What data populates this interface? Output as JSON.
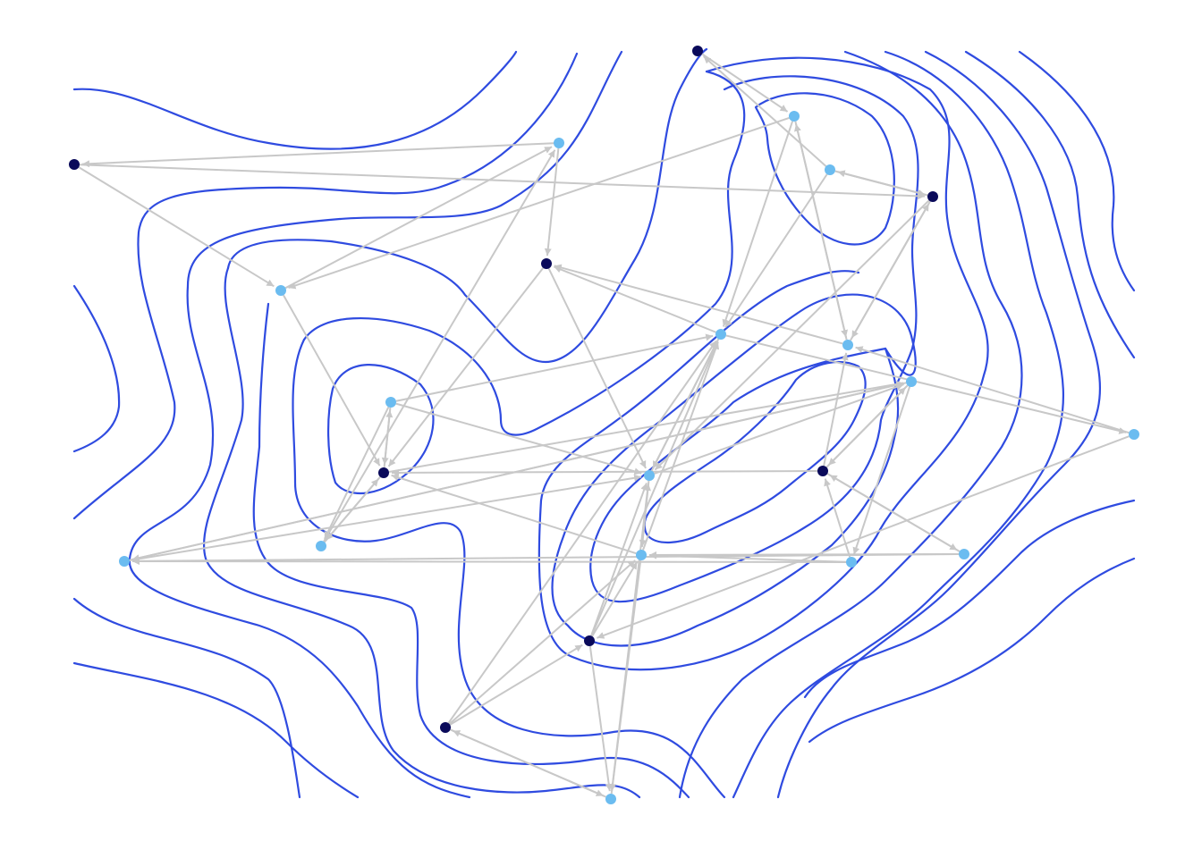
{
  "colors": {
    "contour": "#2f4be0",
    "edge": "#c8c8c8",
    "node_dark": "#0a0a5a",
    "node_light": "#6bbcf0",
    "background": "#ffffff"
  },
  "nodes": [
    {
      "id": "n0",
      "kind": "dark"
    },
    {
      "id": "n1",
      "kind": "dark"
    },
    {
      "id": "n2",
      "kind": "light"
    },
    {
      "id": "n3",
      "kind": "light"
    },
    {
      "id": "n4",
      "kind": "light"
    },
    {
      "id": "n5",
      "kind": "light"
    },
    {
      "id": "n6",
      "kind": "dark"
    },
    {
      "id": "n7",
      "kind": "light"
    },
    {
      "id": "n8",
      "kind": "dark"
    },
    {
      "id": "n9",
      "kind": "light"
    },
    {
      "id": "n10",
      "kind": "light"
    },
    {
      "id": "n11",
      "kind": "light"
    },
    {
      "id": "n12",
      "kind": "dark"
    },
    {
      "id": "n13",
      "kind": "light"
    },
    {
      "id": "n14",
      "kind": "light"
    },
    {
      "id": "n15",
      "kind": "dark"
    },
    {
      "id": "n16",
      "kind": "light"
    },
    {
      "id": "n17",
      "kind": "light"
    },
    {
      "id": "n18",
      "kind": "light"
    },
    {
      "id": "n19",
      "kind": "light"
    },
    {
      "id": "n20",
      "kind": "light"
    },
    {
      "id": "n21",
      "kind": "dark"
    },
    {
      "id": "n22",
      "kind": "dark"
    },
    {
      "id": "n23",
      "kind": "light"
    }
  ],
  "edges": [
    [
      "n1",
      "n4"
    ],
    [
      "n4",
      "n3"
    ],
    [
      "n4",
      "n7"
    ],
    [
      "n4",
      "n10"
    ],
    [
      "n7",
      "n4"
    ],
    [
      "n7",
      "n6"
    ],
    [
      "n7",
      "n8"
    ],
    [
      "n5",
      "n6"
    ],
    [
      "n5",
      "n10"
    ],
    [
      "n5",
      "n1"
    ],
    [
      "n6",
      "n7"
    ],
    [
      "n6",
      "n5"
    ],
    [
      "n3",
      "n2"
    ],
    [
      "n2",
      "n8"
    ],
    [
      "n2",
      "n0"
    ],
    [
      "n0",
      "n6"
    ],
    [
      "n0",
      "n3"
    ],
    [
      "n3",
      "n12"
    ],
    [
      "n12",
      "n14"
    ],
    [
      "n12",
      "n13"
    ],
    [
      "n12",
      "n17"
    ],
    [
      "n14",
      "n2"
    ],
    [
      "n14",
      "n12"
    ],
    [
      "n13",
      "n14"
    ],
    [
      "n13",
      "n18"
    ],
    [
      "n13",
      "n12"
    ],
    [
      "n11",
      "n12"
    ],
    [
      "n11",
      "n10"
    ],
    [
      "n11",
      "n23"
    ],
    [
      "n16",
      "n11"
    ],
    [
      "n16",
      "n20"
    ],
    [
      "n15",
      "n16"
    ],
    [
      "n15",
      "n17"
    ],
    [
      "n15",
      "n7"
    ],
    [
      "n16",
      "n15"
    ],
    [
      "n17",
      "n15"
    ],
    [
      "n17",
      "n19"
    ],
    [
      "n18",
      "n17"
    ],
    [
      "n18",
      "n11"
    ],
    [
      "n18",
      "n10"
    ],
    [
      "n19",
      "n11"
    ],
    [
      "n19",
      "n15"
    ],
    [
      "n19",
      "n20"
    ],
    [
      "n20",
      "n17"
    ],
    [
      "n20",
      "n18"
    ],
    [
      "n21",
      "n23"
    ],
    [
      "n21",
      "n11"
    ],
    [
      "n21",
      "n10"
    ],
    [
      "n22",
      "n21"
    ],
    [
      "n22",
      "n11"
    ],
    [
      "n22",
      "n23"
    ],
    [
      "n23",
      "n18"
    ],
    [
      "n23",
      "n22"
    ],
    [
      "n10",
      "n9"
    ],
    [
      "n10",
      "n18"
    ],
    [
      "n8",
      "n18"
    ],
    [
      "n9",
      "n7"
    ],
    [
      "n9",
      "n21"
    ],
    [
      "n8",
      "n12"
    ],
    [
      "n6",
      "n18"
    ],
    [
      "n10",
      "n8"
    ],
    [
      "n17",
      "n20"
    ],
    [
      "n22",
      "n10"
    ],
    [
      "n21",
      "n18"
    ],
    [
      "n15",
      "n12"
    ],
    [
      "n13",
      "n10"
    ]
  ]
}
